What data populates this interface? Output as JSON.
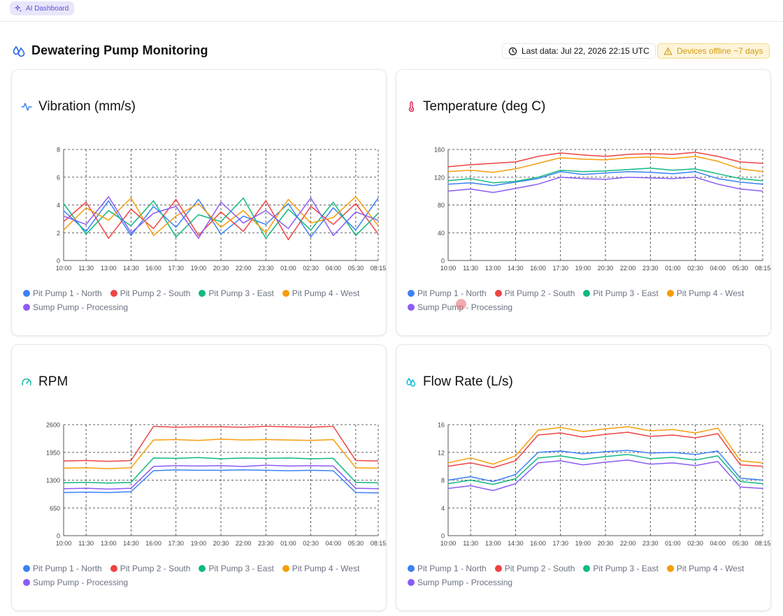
{
  "header": {
    "ai_label": "AI Dashboard"
  },
  "page": {
    "title": "Dewatering Pump Monitoring",
    "last_data": "Last data: Jul 22, 2026 22:15 UTC",
    "offline": "Devices offline ~7 days"
  },
  "colors": {
    "accent": "#5b54d6",
    "series": [
      "#3b82f6",
      "#ef4444",
      "#10b981",
      "#f59e0b",
      "#8b5cf6"
    ]
  },
  "series_names": [
    "Pit Pump 1 - North",
    "Pit Pump 2 - South",
    "Pit Pump 3 - East",
    "Pit Pump 4 - West",
    "Sump Pump - Processing"
  ],
  "x_labels": [
    "10:00",
    "11:30",
    "13:00",
    "14:30",
    "16:00",
    "17:30",
    "19:00",
    "20:30",
    "22:00",
    "23:30",
    "01:00",
    "02:30",
    "04:00",
    "05:30",
    "08:15"
  ],
  "chart_data": [
    {
      "type": "line",
      "title": "Vibration (mm/s)",
      "icon": "activity-icon",
      "ylim": [
        0,
        8
      ],
      "yticks": [
        "0",
        "2",
        "4",
        "6",
        "8"
      ],
      "x": [
        "10:00",
        "11:30",
        "13:00",
        "14:30",
        "16:00",
        "17:30",
        "19:00",
        "20:30",
        "22:00",
        "23:30",
        "01:00",
        "02:30",
        "04:00",
        "05:30",
        "08:15"
      ],
      "grid": true,
      "legend": "bottom",
      "series": [
        {
          "name": "Pit Pump 1 - North",
          "values": [
            3.6,
            2.1,
            4.3,
            1.8,
            3.9,
            2.4,
            4.4,
            1.9,
            3.2,
            2.6,
            4.1,
            1.7,
            3.8,
            2.2,
            4.5
          ]
        },
        {
          "name": "Pit Pump 2 - South",
          "values": [
            2.8,
            4.2,
            1.6,
            3.7,
            2.3,
            4.4,
            1.8,
            3.5,
            2.1,
            4.3,
            1.5,
            3.9,
            2.6,
            4.1,
            1.9
          ]
        },
        {
          "name": "Pit Pump 3 - East",
          "values": [
            4.1,
            1.9,
            3.6,
            2.5,
            4.3,
            1.7,
            3.3,
            2.8,
            4.5,
            1.6,
            3.7,
            2.2,
            4.2,
            1.8,
            3.4
          ]
        },
        {
          "name": "Pit Pump 4 - West",
          "values": [
            2.2,
            3.8,
            2.9,
            4.5,
            1.8,
            3.2,
            4.1,
            2.4,
            3.6,
            2.0,
            4.4,
            2.7,
            3.1,
            4.6,
            2.5
          ]
        },
        {
          "name": "Sump Pump - Processing",
          "values": [
            3.2,
            2.6,
            4.6,
            2.0,
            3.4,
            3.9,
            1.6,
            4.2,
            2.7,
            3.6,
            2.3,
            4.5,
            1.8,
            3.5,
            2.9
          ]
        }
      ]
    },
    {
      "type": "line",
      "title": "Temperature (deg C)",
      "icon": "thermometer-icon",
      "ylim": [
        0,
        160
      ],
      "yticks": [
        "0",
        "40",
        "80",
        "120",
        "160"
      ],
      "x": [
        "10:00",
        "11:30",
        "13:00",
        "14:30",
        "16:00",
        "17:30",
        "19:00",
        "20:30",
        "22:00",
        "23:30",
        "01:00",
        "02:30",
        "04:00",
        "05:30",
        "08:15"
      ],
      "grid": true,
      "legend": "bottom",
      "series": [
        {
          "name": "Pit Pump 1 - North",
          "values": [
            110,
            112,
            108,
            113,
            118,
            128,
            124,
            126,
            128,
            127,
            125,
            128,
            118,
            113,
            110
          ]
        },
        {
          "name": "Pit Pump 2 - South",
          "values": [
            135,
            138,
            140,
            142,
            150,
            155,
            152,
            150,
            153,
            154,
            153,
            156,
            150,
            142,
            140
          ]
        },
        {
          "name": "Pit Pump 3 - East",
          "values": [
            115,
            118,
            112,
            114,
            120,
            130,
            128,
            129,
            131,
            133,
            130,
            132,
            125,
            118,
            115
          ]
        },
        {
          "name": "Pit Pump 4 - West",
          "values": [
            128,
            130,
            127,
            132,
            140,
            148,
            146,
            145,
            148,
            149,
            147,
            150,
            143,
            132,
            128
          ]
        },
        {
          "name": "Sump Pump - Processing",
          "values": [
            100,
            103,
            98,
            104,
            110,
            120,
            118,
            117,
            120,
            119,
            118,
            120,
            110,
            103,
            100
          ]
        }
      ]
    },
    {
      "type": "line",
      "title": "RPM",
      "icon": "gauge-icon",
      "ylim": [
        0,
        2600
      ],
      "yticks": [
        "0",
        "650",
        "1300",
        "1950",
        "2600"
      ],
      "x": [
        "10:00",
        "11:30",
        "13:00",
        "14:30",
        "16:00",
        "17:30",
        "19:00",
        "20:30",
        "22:00",
        "23:30",
        "01:00",
        "02:30",
        "04:00",
        "05:30",
        "08:15"
      ],
      "grid": true,
      "legend": "bottom",
      "series": [
        {
          "name": "Pit Pump 1 - North",
          "values": [
            1010,
            1020,
            1010,
            1030,
            1520,
            1540,
            1530,
            1530,
            1540,
            1530,
            1520,
            1530,
            1520,
            1010,
            1000
          ]
        },
        {
          "name": "Pit Pump 2 - South",
          "values": [
            1750,
            1760,
            1740,
            1760,
            2560,
            2540,
            2550,
            2550,
            2540,
            2560,
            2550,
            2540,
            2560,
            1760,
            1750
          ]
        },
        {
          "name": "Pit Pump 3 - East",
          "values": [
            1240,
            1250,
            1230,
            1250,
            1820,
            1810,
            1830,
            1800,
            1820,
            1810,
            1820,
            1800,
            1810,
            1250,
            1240
          ]
        },
        {
          "name": "Pit Pump 4 - West",
          "values": [
            1580,
            1590,
            1570,
            1590,
            2240,
            2250,
            2230,
            2260,
            2240,
            2250,
            2240,
            2230,
            2250,
            1590,
            1580
          ]
        },
        {
          "name": "Sump Pump - Processing",
          "values": [
            1100,
            1110,
            1090,
            1110,
            1620,
            1640,
            1630,
            1640,
            1620,
            1650,
            1630,
            1640,
            1630,
            1110,
            1100
          ]
        }
      ]
    },
    {
      "type": "line",
      "title": "Flow Rate (L/s)",
      "icon": "droplets-icon",
      "ylim": [
        0,
        16
      ],
      "yticks": [
        "0",
        "4",
        "8",
        "12",
        "16"
      ],
      "x": [
        "10:00",
        "11:30",
        "13:00",
        "14:30",
        "16:00",
        "17:30",
        "19:00",
        "20:30",
        "22:00",
        "23:30",
        "01:00",
        "02:30",
        "04:00",
        "05:30",
        "08:15"
      ],
      "grid": true,
      "legend": "bottom",
      "series": [
        {
          "name": "Pit Pump 1 - North",
          "values": [
            8.0,
            8.5,
            7.8,
            8.8,
            12.0,
            12.2,
            11.8,
            12.1,
            12.3,
            11.9,
            12.0,
            11.7,
            12.2,
            8.3,
            8.0
          ]
        },
        {
          "name": "Pit Pump 2 - South",
          "values": [
            10.0,
            10.5,
            9.8,
            10.8,
            14.5,
            14.8,
            14.2,
            14.6,
            14.9,
            14.3,
            14.5,
            14.1,
            14.7,
            10.2,
            10.0
          ]
        },
        {
          "name": "Pit Pump 3 - East",
          "values": [
            7.5,
            8.0,
            7.4,
            8.2,
            11.2,
            11.5,
            11.0,
            11.4,
            11.7,
            11.1,
            11.3,
            10.9,
            11.5,
            7.8,
            7.5
          ]
        },
        {
          "name": "Pit Pump 4 - West",
          "values": [
            10.5,
            11.2,
            10.3,
            11.5,
            15.2,
            15.6,
            15.0,
            15.4,
            15.7,
            15.1,
            15.3,
            14.8,
            15.5,
            10.8,
            10.5
          ]
        },
        {
          "name": "Sump Pump - Processing",
          "values": [
            6.8,
            7.2,
            6.5,
            7.5,
            10.5,
            10.8,
            10.2,
            10.6,
            10.9,
            10.3,
            10.5,
            10.1,
            10.7,
            7.0,
            6.8
          ]
        }
      ]
    }
  ]
}
